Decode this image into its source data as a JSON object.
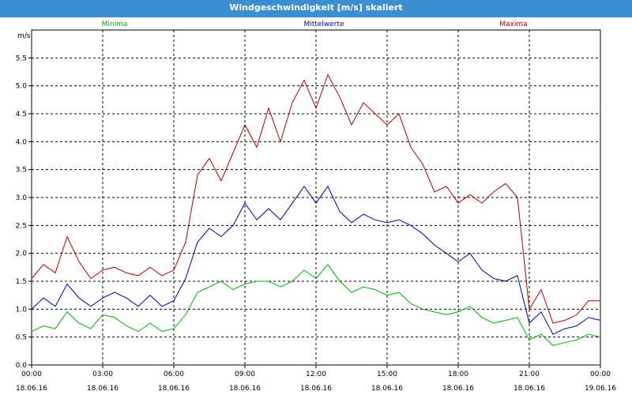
{
  "window": {
    "title": "Windgeschwindigkeit [m/s] skaliert"
  },
  "chart_data": {
    "type": "line",
    "title": "Windgeschwindigkeit [m/s] skaliert",
    "ylabel": "m/s",
    "xlabel": "",
    "ylim": [
      0,
      6
    ],
    "xlim": [
      0,
      24
    ],
    "y_ticks": [
      "0.0",
      "0.5",
      "1.0",
      "1.5",
      "2.0",
      "2.5",
      "3.0",
      "3.5",
      "4.0",
      "4.5",
      "5.0",
      "5.5"
    ],
    "x_ticks": [
      {
        "time": "00:00",
        "date": "18.06.16"
      },
      {
        "time": "03:00",
        "date": "18.06.16"
      },
      {
        "time": "06:00",
        "date": "18.06.16"
      },
      {
        "time": "09:00",
        "date": "18.06.16"
      },
      {
        "time": "12:00",
        "date": "18.06.16"
      },
      {
        "time": "15:00",
        "date": "18.06.16"
      },
      {
        "time": "18:00",
        "date": "18.06.16"
      },
      {
        "time": "21:00",
        "date": "18.06.16"
      },
      {
        "time": "00:00",
        "date": "19.06.16"
      }
    ],
    "grid": true,
    "legend_position": "top",
    "x": [
      0,
      0.5,
      1,
      1.5,
      2,
      2.5,
      3,
      3.5,
      4,
      4.5,
      5,
      5.5,
      6,
      6.5,
      7,
      7.5,
      8,
      8.5,
      9,
      9.5,
      10,
      10.5,
      11,
      11.5,
      12,
      12.5,
      13,
      13.5,
      14,
      14.5,
      15,
      15.5,
      16,
      16.5,
      17,
      17.5,
      18,
      18.5,
      19,
      19.5,
      20,
      20.5,
      21,
      21.5,
      22,
      22.5,
      23,
      23.5,
      24
    ],
    "series": [
      {
        "name": "Minima",
        "color": "#00b000",
        "values": [
          0.6,
          0.7,
          0.65,
          0.95,
          0.75,
          0.65,
          0.9,
          0.85,
          0.7,
          0.6,
          0.75,
          0.6,
          0.65,
          0.9,
          1.3,
          1.4,
          1.5,
          1.35,
          1.45,
          1.5,
          1.5,
          1.4,
          1.5,
          1.7,
          1.55,
          1.8,
          1.5,
          1.3,
          1.4,
          1.35,
          1.25,
          1.3,
          1.1,
          1.0,
          0.95,
          0.9,
          0.95,
          1.05,
          0.85,
          0.75,
          0.8,
          0.85,
          0.45,
          0.55,
          0.35,
          0.4,
          0.45,
          0.55,
          0.5
        ]
      },
      {
        "name": "Mittelwerte",
        "color": "#0000b0",
        "values": [
          1.0,
          1.2,
          1.05,
          1.45,
          1.2,
          1.05,
          1.2,
          1.3,
          1.2,
          1.05,
          1.25,
          1.05,
          1.15,
          1.55,
          2.2,
          2.45,
          2.3,
          2.5,
          2.9,
          2.6,
          2.8,
          2.6,
          2.9,
          3.2,
          2.9,
          3.2,
          2.75,
          2.55,
          2.7,
          2.6,
          2.55,
          2.6,
          2.5,
          2.35,
          2.15,
          2.0,
          1.85,
          2.0,
          1.7,
          1.55,
          1.5,
          1.6,
          0.75,
          0.95,
          0.55,
          0.65,
          0.7,
          0.85,
          0.8
        ]
      },
      {
        "name": "Maxima",
        "color": "#b00000",
        "values": [
          1.55,
          1.8,
          1.65,
          2.3,
          1.85,
          1.55,
          1.7,
          1.75,
          1.65,
          1.6,
          1.75,
          1.6,
          1.7,
          2.2,
          3.4,
          3.7,
          3.3,
          3.8,
          4.3,
          3.9,
          4.6,
          4.0,
          4.7,
          5.1,
          4.6,
          5.2,
          4.8,
          4.3,
          4.7,
          4.5,
          4.3,
          4.5,
          3.9,
          3.6,
          3.1,
          3.2,
          2.9,
          3.05,
          2.9,
          3.1,
          3.25,
          3.0,
          1.0,
          1.35,
          0.75,
          0.8,
          0.9,
          1.15,
          1.15
        ]
      }
    ]
  }
}
